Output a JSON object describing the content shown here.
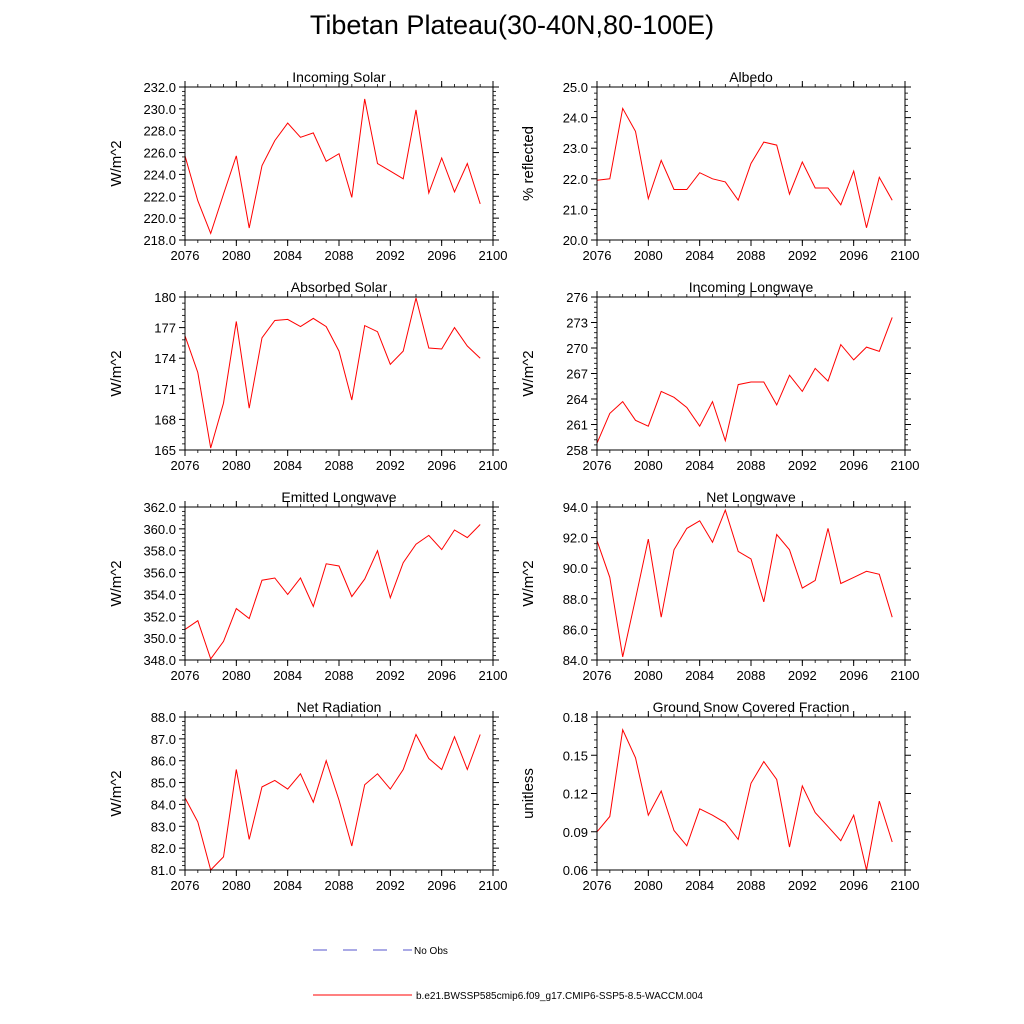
{
  "figure": {
    "title": "Tibetan Plateau(30-40N,80-100E)"
  },
  "legend": {
    "obs_label": "No Obs",
    "obs_color": "#5555cc",
    "model_label": "b.e21.BWSSP585cmip6.f09_g17.CMIP6-SSP5-8.5-WACCM.004",
    "model_color": "#ff0000"
  },
  "chart_data": [
    {
      "type": "line",
      "title": "Incoming Solar",
      "xlabel": "",
      "ylabel": "W/m^2",
      "xlim": [
        2076,
        2100
      ],
      "ylim": [
        218.0,
        232.0
      ],
      "xticks": [
        2076,
        2080,
        2084,
        2088,
        2092,
        2096,
        2100
      ],
      "yticks": [
        "218.0",
        "220.0",
        "222.0",
        "224.0",
        "226.0",
        "228.0",
        "230.0",
        "232.0"
      ],
      "x": [
        2076,
        2077,
        2078,
        2079,
        2080,
        2081,
        2082,
        2083,
        2084,
        2085,
        2086,
        2087,
        2088,
        2089,
        2090,
        2091,
        2092,
        2093,
        2094,
        2095,
        2096,
        2097,
        2098,
        2099
      ],
      "series": [
        {
          "name": "b.e21.BWSSP585cmip6.f09_g17.CMIP6-SSP5-8.5-WACCM.004",
          "values": [
            225.7,
            221.6,
            218.6,
            222.2,
            225.7,
            219.1,
            224.8,
            227.1,
            228.7,
            227.4,
            227.8,
            225.2,
            225.9,
            221.9,
            230.9,
            225.0,
            224.3,
            223.6,
            229.9,
            222.3,
            225.5,
            222.4,
            225.0,
            221.3
          ]
        }
      ]
    },
    {
      "type": "line",
      "title": "Albedo",
      "xlabel": "",
      "ylabel": "% reflected",
      "xlim": [
        2076,
        2100
      ],
      "ylim": [
        20.0,
        25.0
      ],
      "xticks": [
        2076,
        2080,
        2084,
        2088,
        2092,
        2096,
        2100
      ],
      "yticks": [
        "20.0",
        "21.0",
        "22.0",
        "23.0",
        "24.0",
        "25.0"
      ],
      "x": [
        2076,
        2077,
        2078,
        2079,
        2080,
        2081,
        2082,
        2083,
        2084,
        2085,
        2086,
        2087,
        2088,
        2089,
        2090,
        2091,
        2092,
        2093,
        2094,
        2095,
        2096,
        2097,
        2098,
        2099
      ],
      "series": [
        {
          "name": "b.e21.BWSSP585cmip6.f09_g17.CMIP6-SSP5-8.5-WACCM.004",
          "values": [
            21.95,
            22.0,
            24.3,
            23.55,
            21.35,
            22.6,
            21.65,
            21.65,
            22.2,
            22.0,
            21.9,
            21.3,
            22.5,
            23.2,
            23.1,
            21.5,
            22.55,
            21.7,
            21.7,
            21.15,
            22.25,
            20.4,
            22.05,
            21.3
          ]
        }
      ]
    },
    {
      "type": "line",
      "title": "Absorbed Solar",
      "xlabel": "",
      "ylabel": "W/m^2",
      "xlim": [
        2076,
        2100
      ],
      "ylim": [
        165,
        180
      ],
      "xticks": [
        2076,
        2080,
        2084,
        2088,
        2092,
        2096,
        2100
      ],
      "yticks": [
        "165",
        "168",
        "171",
        "174",
        "177",
        "180"
      ],
      "x": [
        2076,
        2077,
        2078,
        2079,
        2080,
        2081,
        2082,
        2083,
        2084,
        2085,
        2086,
        2087,
        2088,
        2089,
        2090,
        2091,
        2092,
        2093,
        2094,
        2095,
        2096,
        2097,
        2098,
        2099
      ],
      "series": [
        {
          "name": "b.e21.BWSSP585cmip6.f09_g17.CMIP6-SSP5-8.5-WACCM.004",
          "values": [
            176.2,
            172.6,
            165.2,
            169.6,
            177.6,
            169.1,
            176.0,
            177.7,
            177.8,
            177.1,
            177.9,
            177.1,
            174.7,
            169.9,
            177.2,
            176.6,
            173.4,
            174.7,
            179.9,
            175.0,
            174.9,
            177.0,
            175.2,
            174.0
          ]
        }
      ]
    },
    {
      "type": "line",
      "title": "Incoming Longwave",
      "xlabel": "",
      "ylabel": "W/m^2",
      "xlim": [
        2076,
        2100
      ],
      "ylim": [
        258,
        276
      ],
      "xticks": [
        2076,
        2080,
        2084,
        2088,
        2092,
        2096,
        2100
      ],
      "yticks": [
        "258",
        "261",
        "264",
        "267",
        "270",
        "273",
        "276"
      ],
      "x": [
        2076,
        2077,
        2078,
        2079,
        2080,
        2081,
        2082,
        2083,
        2084,
        2085,
        2086,
        2087,
        2088,
        2089,
        2090,
        2091,
        2092,
        2093,
        2094,
        2095,
        2096,
        2097,
        2098,
        2099
      ],
      "series": [
        {
          "name": "b.e21.BWSSP585cmip6.f09_g17.CMIP6-SSP5-8.5-WACCM.004",
          "values": [
            258.8,
            262.3,
            263.7,
            261.5,
            260.8,
            264.9,
            264.2,
            263.0,
            260.8,
            263.7,
            259.1,
            265.7,
            266.0,
            266.0,
            263.3,
            266.8,
            264.9,
            267.6,
            266.1,
            270.4,
            268.6,
            270.1,
            269.6,
            273.6
          ]
        }
      ]
    },
    {
      "type": "line",
      "title": "Emitted Longwave",
      "xlabel": "",
      "ylabel": "W/m^2",
      "xlim": [
        2076,
        2100
      ],
      "ylim": [
        348.0,
        362.0
      ],
      "xticks": [
        2076,
        2080,
        2084,
        2088,
        2092,
        2096,
        2100
      ],
      "yticks": [
        "348.0",
        "350.0",
        "352.0",
        "354.0",
        "356.0",
        "358.0",
        "360.0",
        "362.0"
      ],
      "x": [
        2076,
        2077,
        2078,
        2079,
        2080,
        2081,
        2082,
        2083,
        2084,
        2085,
        2086,
        2087,
        2088,
        2089,
        2090,
        2091,
        2092,
        2093,
        2094,
        2095,
        2096,
        2097,
        2098,
        2099
      ],
      "series": [
        {
          "name": "b.e21.BWSSP585cmip6.f09_g17.CMIP6-SSP5-8.5-WACCM.004",
          "values": [
            350.8,
            351.6,
            348.1,
            349.7,
            352.7,
            351.8,
            355.3,
            355.5,
            354.0,
            355.5,
            352.9,
            356.8,
            356.6,
            353.8,
            355.4,
            358.0,
            353.7,
            356.9,
            358.6,
            359.4,
            358.1,
            359.9,
            359.2,
            360.4
          ]
        }
      ]
    },
    {
      "type": "line",
      "title": "Net Longwave",
      "xlabel": "",
      "ylabel": "W/m^2",
      "xlim": [
        2076,
        2100
      ],
      "ylim": [
        84.0,
        94.0
      ],
      "xticks": [
        2076,
        2080,
        2084,
        2088,
        2092,
        2096,
        2100
      ],
      "yticks": [
        "84.0",
        "86.0",
        "88.0",
        "90.0",
        "92.0",
        "94.0"
      ],
      "x": [
        2076,
        2077,
        2078,
        2079,
        2080,
        2081,
        2082,
        2083,
        2084,
        2085,
        2086,
        2087,
        2088,
        2089,
        2090,
        2091,
        2092,
        2093,
        2094,
        2095,
        2096,
        2097,
        2098,
        2099
      ],
      "series": [
        {
          "name": "b.e21.BWSSP585cmip6.f09_g17.CMIP6-SSP5-8.5-WACCM.004",
          "values": [
            91.8,
            89.4,
            84.2,
            88.0,
            91.9,
            86.8,
            91.2,
            92.6,
            93.1,
            91.7,
            93.8,
            91.1,
            90.6,
            87.8,
            92.2,
            91.2,
            88.7,
            89.2,
            92.6,
            89.0,
            89.4,
            89.8,
            89.6,
            86.8
          ]
        }
      ]
    },
    {
      "type": "line",
      "title": "Net Radiation",
      "xlabel": "",
      "ylabel": "W/m^2",
      "xlim": [
        2076,
        2100
      ],
      "ylim": [
        81.0,
        88.0
      ],
      "xticks": [
        2076,
        2080,
        2084,
        2088,
        2092,
        2096,
        2100
      ],
      "yticks": [
        "81.0",
        "82.0",
        "83.0",
        "84.0",
        "85.0",
        "86.0",
        "87.0",
        "88.0"
      ],
      "x": [
        2076,
        2077,
        2078,
        2079,
        2080,
        2081,
        2082,
        2083,
        2084,
        2085,
        2086,
        2087,
        2088,
        2089,
        2090,
        2091,
        2092,
        2093,
        2094,
        2095,
        2096,
        2097,
        2098,
        2099
      ],
      "series": [
        {
          "name": "b.e21.BWSSP585cmip6.f09_g17.CMIP6-SSP5-8.5-WACCM.004",
          "values": [
            84.3,
            83.2,
            81.0,
            81.6,
            85.6,
            82.4,
            84.8,
            85.1,
            84.7,
            85.4,
            84.1,
            86.0,
            84.2,
            82.1,
            84.9,
            85.4,
            84.7,
            85.6,
            87.2,
            86.1,
            85.6,
            87.1,
            85.6,
            87.2
          ]
        }
      ]
    },
    {
      "type": "line",
      "title": "Ground Snow Covered Fraction",
      "xlabel": "",
      "ylabel": "unitless",
      "xlim": [
        2076,
        2100
      ],
      "ylim": [
        0.06,
        0.18
      ],
      "xticks": [
        2076,
        2080,
        2084,
        2088,
        2092,
        2096,
        2100
      ],
      "yticks": [
        "0.06",
        "0.09",
        "0.12",
        "0.15",
        "0.18"
      ],
      "x": [
        2076,
        2077,
        2078,
        2079,
        2080,
        2081,
        2082,
        2083,
        2084,
        2085,
        2086,
        2087,
        2088,
        2089,
        2090,
        2091,
        2092,
        2093,
        2094,
        2095,
        2096,
        2097,
        2098,
        2099
      ],
      "series": [
        {
          "name": "b.e21.BWSSP585cmip6.f09_g17.CMIP6-SSP5-8.5-WACCM.004",
          "values": [
            0.09,
            0.102,
            0.17,
            0.148,
            0.103,
            0.122,
            0.091,
            0.079,
            0.108,
            0.103,
            0.097,
            0.084,
            0.128,
            0.145,
            0.131,
            0.078,
            0.126,
            0.105,
            0.094,
            0.083,
            0.103,
            0.06,
            0.114,
            0.082
          ]
        }
      ]
    }
  ]
}
